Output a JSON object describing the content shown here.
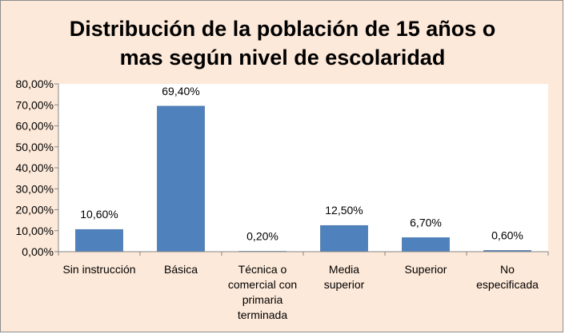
{
  "chart_data": {
    "type": "bar",
    "title_lines": [
      "Distribución de la población de 15 años o",
      "mas según nivel de escolaridad"
    ],
    "xlabel": "",
    "ylabel": "",
    "ylim": [
      0,
      80
    ],
    "y_ticks": [
      "0,00%",
      "10,00%",
      "20,00%",
      "30,00%",
      "40,00%",
      "50,00%",
      "60,00%",
      "70,00%",
      "80,00%"
    ],
    "categories": [
      [
        "Sin instrucción"
      ],
      [
        "Básica"
      ],
      [
        "Técnica o",
        "comercial con",
        "primaria",
        "terminada"
      ],
      [
        "Media",
        "superior"
      ],
      [
        "Superior"
      ],
      [
        "No",
        "especificada"
      ]
    ],
    "values": [
      10.6,
      69.4,
      0.2,
      12.5,
      6.7,
      0.6
    ],
    "data_labels": [
      "10,60%",
      "69,40%",
      "0,20%",
      "12,50%",
      "6,70%",
      "0,60%"
    ],
    "grid": false,
    "legend": "none",
    "colors": {
      "bar": "#4f81bd",
      "bar_border": "#3c6796",
      "frame_bg": "#fde9d9",
      "plot_bg": "#ffffff"
    }
  }
}
